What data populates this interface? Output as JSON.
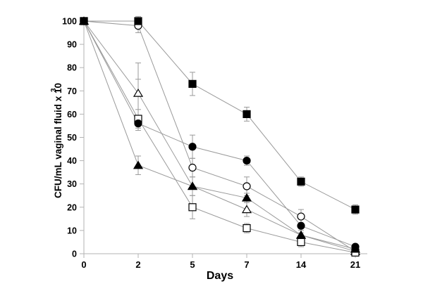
{
  "chart_data": {
    "type": "line",
    "title": "",
    "x": [
      "0",
      "2",
      "5",
      "7",
      "14",
      "21"
    ],
    "xlabel": "Days",
    "ylabel": "CFU/mL vaginal fluid x 10",
    "ylabel_superscript": "3",
    "ylim": [
      0,
      100
    ],
    "yticks": [
      0,
      10,
      20,
      30,
      40,
      50,
      60,
      70,
      80,
      90,
      100
    ],
    "grid": false,
    "legend": "none",
    "background": "#ffffff",
    "axis_color": "#b3b3b3",
    "line_color": "#9a9a9a",
    "error_bar_color": "#9a9a9a",
    "marker_color": "#000000",
    "series": [
      {
        "name": "open-circle",
        "marker": "circle",
        "fill": "white",
        "values": [
          100,
          98,
          37,
          29,
          16,
          1
        ],
        "errors": [
          0,
          3,
          4,
          4,
          3,
          1
        ]
      },
      {
        "name": "open-triangle",
        "marker": "triangle",
        "fill": "white",
        "values": [
          100,
          69,
          29,
          19,
          8,
          1
        ],
        "errors": [
          0,
          [
            7,
            13
          ],
          0,
          3,
          0,
          0
        ]
      },
      {
        "name": "open-square",
        "marker": "square",
        "fill": "white",
        "values": [
          100,
          58,
          20,
          11,
          5,
          0.5
        ],
        "errors": [
          0,
          [
            4,
            17
          ],
          5,
          2,
          2,
          0
        ]
      },
      {
        "name": "filled-triangle",
        "marker": "triangle",
        "fill": "black",
        "values": [
          100,
          38,
          29,
          24,
          8,
          2
        ],
        "errors": [
          0,
          4,
          4,
          2,
          2,
          0
        ]
      },
      {
        "name": "filled-square",
        "marker": "square",
        "fill": "black",
        "values": [
          100,
          100,
          73,
          60,
          31,
          19
        ],
        "errors": [
          0,
          2,
          5,
          3,
          2,
          2
        ]
      },
      {
        "name": "filled-circle",
        "marker": "circle",
        "fill": "black",
        "values": [
          100,
          56,
          46,
          40,
          12,
          3
        ],
        "errors": [
          0,
          3,
          5,
          2,
          3,
          1
        ]
      }
    ]
  }
}
